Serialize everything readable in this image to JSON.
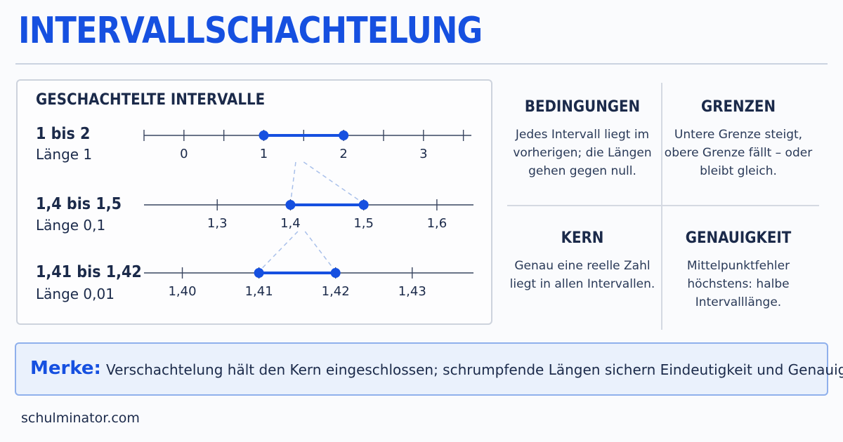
{
  "title": "INTERVALLSCHACHTELUNG",
  "panel": {
    "title": "GESCHACHTELTE INTERVALLE",
    "rows": [
      {
        "name": "1 bis 2",
        "length": "Länge 1",
        "axis": [
          -0.5,
          3.6
        ],
        "ticks": [
          {
            "value": -0.5,
            "label": ""
          },
          {
            "value": 0,
            "label": "0"
          },
          {
            "value": 0.5,
            "label": ""
          },
          {
            "value": 1,
            "label": "1"
          },
          {
            "value": 1.5,
            "label": ""
          },
          {
            "value": 2,
            "label": "2"
          },
          {
            "value": 2.5,
            "label": ""
          },
          {
            "value": 3,
            "label": "3"
          },
          {
            "value": 3.5,
            "label": ""
          }
        ],
        "interval": [
          1,
          2
        ]
      },
      {
        "name": "1,4 bis 1,5",
        "length": "Länge 0,1",
        "axis": [
          1.2,
          1.65
        ],
        "ticks": [
          {
            "value": 1.3,
            "label": "1,3"
          },
          {
            "value": 1.4,
            "label": "1,4"
          },
          {
            "value": 1.5,
            "label": "1,5"
          },
          {
            "value": 1.6,
            "label": "1,6"
          }
        ],
        "interval": [
          1.4,
          1.5
        ]
      },
      {
        "name": "1,41 bis 1,42",
        "length": "Länge 0,01",
        "axis": [
          1.395,
          1.438
        ],
        "ticks": [
          {
            "value": 1.4,
            "label": "1,40"
          },
          {
            "value": 1.41,
            "label": "1,41"
          },
          {
            "value": 1.42,
            "label": "1,42"
          },
          {
            "value": 1.43,
            "label": "1,43"
          }
        ],
        "interval": [
          1.41,
          1.42
        ]
      }
    ]
  },
  "cells": [
    {
      "heading": "BEDINGUNGEN",
      "text": "Jedes Intervall liegt im vorherigen; die Längen gehen gegen null."
    },
    {
      "heading": "GRENZEN",
      "text": "Untere Grenze steigt, obere Grenze fällt – oder bleibt gleich."
    },
    {
      "heading": "KERN",
      "text": "Genau eine reelle Zahl liegt in allen Intervallen."
    },
    {
      "heading": "GENAUIGKEIT",
      "text": "Mittelpunktfehler höchstens: halbe Intervalllänge."
    }
  ],
  "merke": {
    "label": "Merke:",
    "text": "Verschachtelung hält den Kern eingeschlossen; schrumpfende Längen sichern Eindeutigkeit und Genauigkeit."
  },
  "footer": "schulminator.com",
  "colors": {
    "accent": "#1650e0",
    "line": "#3a4660",
    "connector": "#a9c0ea"
  }
}
